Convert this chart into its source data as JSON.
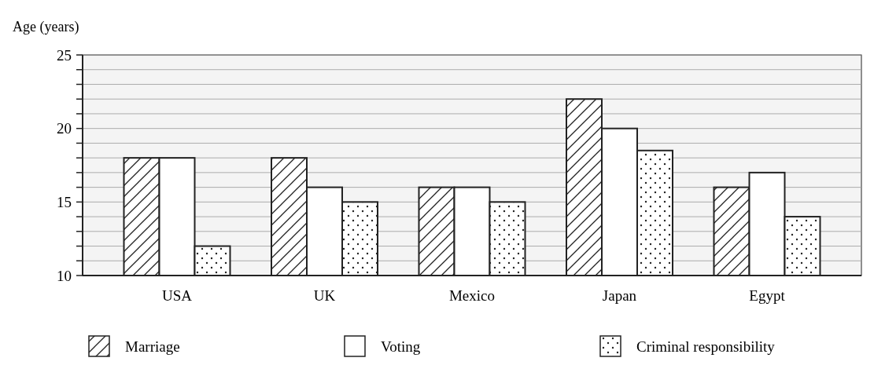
{
  "chart_data": {
    "type": "bar",
    "ylabel": "Age (years)",
    "categories": [
      "USA",
      "UK",
      "Mexico",
      "Japan",
      "Egypt"
    ],
    "series": [
      {
        "name": "Marriage",
        "color": "#222222",
        "values": [
          18,
          18,
          16,
          22,
          16
        ]
      },
      {
        "name": "Voting",
        "color": "#222222",
        "values": [
          18,
          16,
          16,
          20,
          17
        ]
      },
      {
        "name": "Criminal responsibility",
        "color": "#222222",
        "values": [
          12,
          15,
          15,
          18.5,
          14
        ]
      }
    ],
    "ylim": [
      10,
      25
    ],
    "yticks": [
      10,
      {
        "value": 11,
        "label": null
      },
      {
        "value": 12,
        "label": null
      },
      {
        "value": 13,
        "label": null
      },
      {
        "value": 14,
        "label": null
      },
      15,
      {
        "value": 16,
        "label": null
      },
      {
        "value": 17,
        "label": null
      },
      {
        "value": 18,
        "label": null
      },
      {
        "value": 19,
        "label": null
      },
      20,
      {
        "value": 21,
        "label": null
      },
      {
        "value": 22,
        "label": null
      },
      {
        "value": 23,
        "label": null
      },
      {
        "value": 24,
        "label": null
      },
      25
    ],
    "grid": "y",
    "legend": "bottom"
  }
}
